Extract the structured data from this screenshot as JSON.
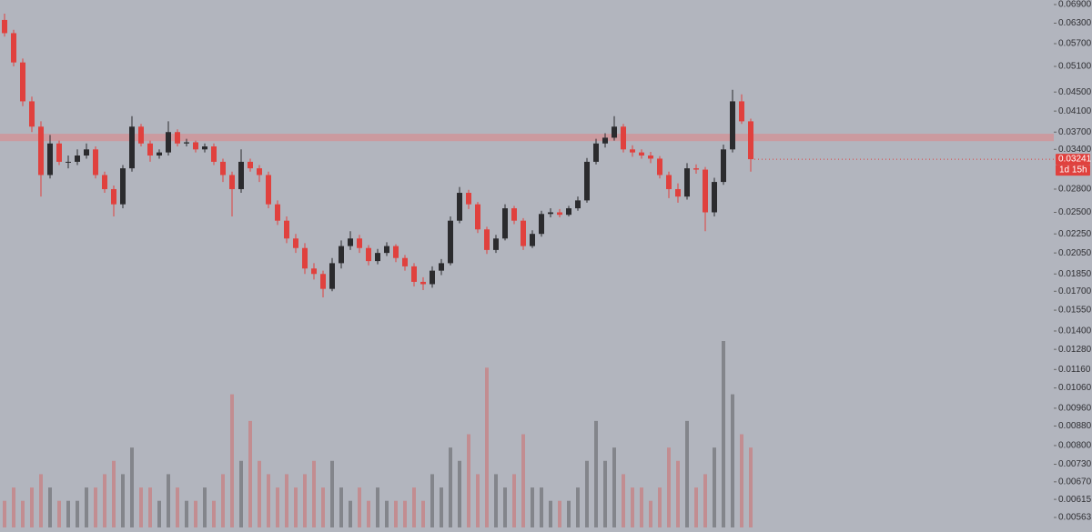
{
  "chart_data": {
    "type": "candlestick",
    "log_scale": true,
    "ylim": [
      0.00563,
      0.069
    ],
    "yticks": [
      {
        "value": 0.069,
        "label": "0.06900"
      },
      {
        "value": 0.063,
        "label": "0.06300"
      },
      {
        "value": 0.057,
        "label": "0.05700"
      },
      {
        "value": 0.051,
        "label": "0.05100"
      },
      {
        "value": 0.045,
        "label": "0.04500"
      },
      {
        "value": 0.041,
        "label": "0.04100"
      },
      {
        "value": 0.037,
        "label": "0.03700"
      },
      {
        "value": 0.034,
        "label": "0.03400"
      },
      {
        "value": 0.028,
        "label": "0.02800"
      },
      {
        "value": 0.025,
        "label": "0.02500"
      },
      {
        "value": 0.0225,
        "label": "0.02250"
      },
      {
        "value": 0.0205,
        "label": "0.02050"
      },
      {
        "value": 0.0185,
        "label": "0.01850"
      },
      {
        "value": 0.017,
        "label": "0.01700"
      },
      {
        "value": 0.0155,
        "label": "0.01550"
      },
      {
        "value": 0.014,
        "label": "0.01400"
      },
      {
        "value": 0.0128,
        "label": "0.01280"
      },
      {
        "value": 0.0116,
        "label": "0.01160"
      },
      {
        "value": 0.0106,
        "label": "0.01060"
      },
      {
        "value": 0.0096,
        "label": "0.00960"
      },
      {
        "value": 0.0088,
        "label": "0.00880"
      },
      {
        "value": 0.008,
        "label": "0.00800"
      },
      {
        "value": 0.0073,
        "label": "0.00730"
      },
      {
        "value": 0.0067,
        "label": "0.00670"
      },
      {
        "value": 0.00615,
        "label": "0.00615"
      },
      {
        "value": 0.00563,
        "label": "0.00563"
      }
    ],
    "up_color": "#2b2b2e",
    "down_color": "#e0413e",
    "open": [
      0.064,
      0.06,
      0.052,
      0.043,
      0.038,
      0.03,
      0.035,
      0.032,
      0.032,
      0.033,
      0.034,
      0.03,
      0.028,
      0.026,
      0.031,
      0.038,
      0.035,
      0.033,
      0.0335,
      0.037,
      0.035,
      0.0352,
      0.034,
      0.0345,
      0.032,
      0.03,
      0.028,
      0.032,
      0.031,
      0.03,
      0.026,
      0.024,
      0.022,
      0.021,
      0.019,
      0.0185,
      0.0172,
      0.0195,
      0.0212,
      0.022,
      0.021,
      0.0197,
      0.0205,
      0.0212,
      0.02,
      0.0192,
      0.0178,
      0.0176,
      0.0188,
      0.0195,
      0.024,
      0.0275,
      0.026,
      0.023,
      0.0208,
      0.022,
      0.0255,
      0.024,
      0.0212,
      0.0225,
      0.0248,
      0.025,
      0.0247,
      0.0255,
      0.0265,
      0.032,
      0.035,
      0.036,
      0.038,
      0.034,
      0.0335,
      0.033,
      0.0325,
      0.03,
      0.028,
      0.027,
      0.031,
      0.0308,
      0.025,
      0.029,
      0.034,
      0.043,
      0.039
    ],
    "high": [
      0.066,
      0.061,
      0.053,
      0.044,
      0.039,
      0.0365,
      0.0355,
      0.033,
      0.034,
      0.035,
      0.0345,
      0.0305,
      0.0285,
      0.0315,
      0.04,
      0.0385,
      0.0355,
      0.034,
      0.039,
      0.0375,
      0.0358,
      0.0355,
      0.035,
      0.035,
      0.0325,
      0.0305,
      0.034,
      0.0325,
      0.0315,
      0.0305,
      0.0265,
      0.0245,
      0.0225,
      0.0215,
      0.0195,
      0.0188,
      0.02,
      0.0218,
      0.0228,
      0.0224,
      0.0213,
      0.0209,
      0.0216,
      0.0214,
      0.0203,
      0.0195,
      0.0182,
      0.0192,
      0.0199,
      0.0245,
      0.0283,
      0.0279,
      0.0263,
      0.0233,
      0.0224,
      0.026,
      0.0258,
      0.0243,
      0.0229,
      0.0252,
      0.0255,
      0.0254,
      0.0258,
      0.027,
      0.0326,
      0.0358,
      0.0368,
      0.04,
      0.0385,
      0.0347,
      0.034,
      0.0336,
      0.0329,
      0.0305,
      0.0288,
      0.0318,
      0.0316,
      0.0312,
      0.0296,
      0.0348,
      0.0455,
      0.0445,
      0.0395
    ],
    "low": [
      0.059,
      0.051,
      0.042,
      0.037,
      0.027,
      0.0295,
      0.0315,
      0.031,
      0.0315,
      0.0325,
      0.0295,
      0.0275,
      0.0245,
      0.0255,
      0.0305,
      0.0345,
      0.032,
      0.0325,
      0.033,
      0.0345,
      0.0345,
      0.0335,
      0.0335,
      0.0315,
      0.029,
      0.0245,
      0.0275,
      0.0305,
      0.029,
      0.0255,
      0.0235,
      0.0215,
      0.0205,
      0.0185,
      0.018,
      0.0165,
      0.017,
      0.019,
      0.0208,
      0.0205,
      0.0193,
      0.0194,
      0.0202,
      0.0196,
      0.0188,
      0.0174,
      0.0171,
      0.0173,
      0.0184,
      0.0193,
      0.0237,
      0.0254,
      0.0226,
      0.0204,
      0.0205,
      0.0218,
      0.0236,
      0.0208,
      0.021,
      0.0222,
      0.0244,
      0.0244,
      0.0245,
      0.0252,
      0.0262,
      0.0316,
      0.0343,
      0.0355,
      0.0335,
      0.0328,
      0.0325,
      0.0318,
      0.0295,
      0.0268,
      0.0262,
      0.0266,
      0.0302,
      0.0228,
      0.0245,
      0.0286,
      0.0335,
      0.0385,
      0.0305
    ],
    "close": [
      0.06,
      0.052,
      0.043,
      0.038,
      0.03,
      0.035,
      0.032,
      0.032,
      0.033,
      0.034,
      0.03,
      0.028,
      0.026,
      0.031,
      0.038,
      0.035,
      0.033,
      0.0335,
      0.037,
      0.035,
      0.0352,
      0.034,
      0.0345,
      0.032,
      0.03,
      0.028,
      0.032,
      0.031,
      0.03,
      0.026,
      0.024,
      0.022,
      0.021,
      0.019,
      0.0185,
      0.0172,
      0.0195,
      0.0212,
      0.022,
      0.021,
      0.0197,
      0.0205,
      0.0212,
      0.02,
      0.0192,
      0.0178,
      0.0176,
      0.0188,
      0.0195,
      0.024,
      0.0275,
      0.026,
      0.023,
      0.0208,
      0.022,
      0.0255,
      0.024,
      0.0212,
      0.0225,
      0.0248,
      0.025,
      0.0247,
      0.0255,
      0.0265,
      0.032,
      0.035,
      0.036,
      0.038,
      0.034,
      0.0335,
      0.033,
      0.0325,
      0.03,
      0.028,
      0.027,
      0.031,
      0.0308,
      0.025,
      0.029,
      0.034,
      0.043,
      0.039,
      0.03241
    ],
    "volume": [
      2,
      3,
      2,
      3,
      4,
      3,
      2,
      2,
      2,
      3,
      3,
      4,
      5,
      4,
      6,
      3,
      3,
      2,
      4,
      3,
      2,
      2,
      3,
      2,
      4,
      10,
      5,
      8,
      5,
      4,
      3,
      4,
      3,
      4,
      5,
      3,
      5,
      3,
      2,
      3,
      2,
      3,
      2,
      2,
      2,
      3,
      2,
      4,
      3,
      6,
      5,
      7,
      4,
      12,
      4,
      3,
      4,
      7,
      3,
      3,
      2,
      2,
      2,
      3,
      5,
      8,
      5,
      6,
      4,
      3,
      3,
      2,
      3,
      6,
      5,
      8,
      3,
      4,
      6,
      14,
      10,
      7,
      6
    ],
    "zone": {
      "low": 0.0354,
      "high": 0.0367,
      "color": "rgba(232,122,122,0.45)"
    },
    "last_price": {
      "value": 0.03241,
      "label": "0.03241"
    },
    "countdown": "1d 15h"
  }
}
